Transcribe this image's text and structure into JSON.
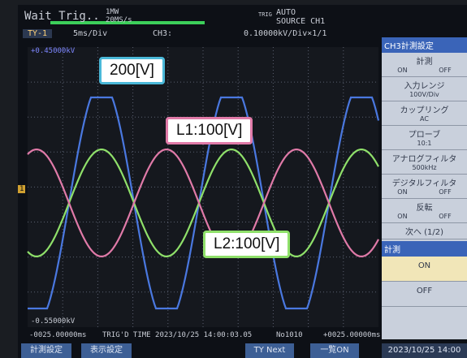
{
  "header": {
    "status": "Wait Trig..",
    "memory": "1MW",
    "rate": "20MS/s",
    "trigger_label": "TRIG",
    "trigger_mode": "AUTO",
    "trigger_source": "SOURCE CH1",
    "channel_tab": "TY-1",
    "timebase": "5ms/Div",
    "channel": "CH3:",
    "scale": "0.10000kV/Div×1/1"
  },
  "plot": {
    "top_value": "+0.45000kV",
    "bottom_value": "-0.55000kV",
    "left_time": "-0025.00000ms",
    "trig_time": "TRIG'D TIME 2023/10/25 14:00:03.05",
    "record": "No1010",
    "right_time": "+0025.00000ms",
    "marker": "1"
  },
  "annotations": [
    "200[V]",
    "L1:100[V]",
    "L2:100[V]"
  ],
  "panel": {
    "title": "CH3計測設定",
    "items": [
      {
        "label": "計測",
        "options": [
          "ON",
          "OFF"
        ]
      },
      {
        "label": "入力レンジ",
        "value": "100V/Div"
      },
      {
        "label": "カップリング",
        "value": "AC"
      },
      {
        "label": "プローブ",
        "value": "10:1"
      },
      {
        "label": "アナログフィルタ",
        "value": "500kHz"
      },
      {
        "label": "デジタルフィルタ",
        "options": [
          "ON",
          "OFF"
        ]
      },
      {
        "label": "反転",
        "options": [
          "ON",
          "OFF"
        ]
      },
      {
        "label": "次へ (1/2)"
      }
    ],
    "section": "計測",
    "buttons": [
      "ON",
      "OFF"
    ]
  },
  "footer": {
    "buttons": [
      "計測設定",
      "表示設定",
      "TY Next",
      "一覧ON"
    ],
    "clock": "2023/10/25 14:00"
  }
}
